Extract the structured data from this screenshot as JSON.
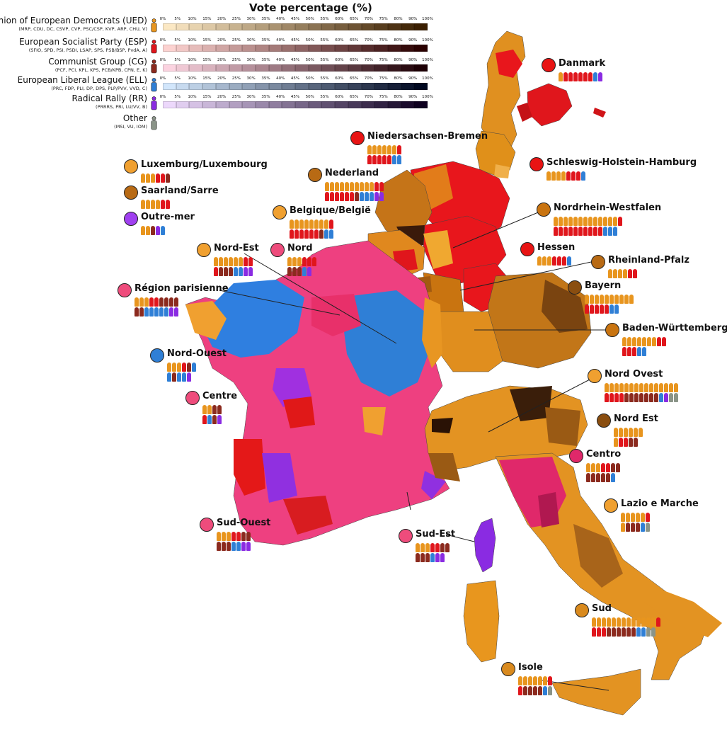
{
  "legend": {
    "title": "Vote percentage (%)",
    "ticks": [
      "0%",
      "5%",
      "10%",
      "15%",
      "20%",
      "25%",
      "30%",
      "35%",
      "40%",
      "45%",
      "50%",
      "55%",
      "60%",
      "65%",
      "70%",
      "75%",
      "80%",
      "90%",
      "100%"
    ],
    "parties": [
      {
        "name": "Union of European Democrats (UED)",
        "members": "(MRP, CDU, DC, CSVP, CVP, PSC/CSP, KVP, ARP, CHU, V)",
        "color": "#e8951e",
        "ramp_start": "#fbe8c4",
        "ramp_end": "#3a1e00"
      },
      {
        "name": "European Socialist Party (ESP)",
        "members": "(SFIO, SPD, PSI, PSDI, LSAP, SPS, PSB/BSP, PvdA, A)",
        "color": "#e0161c",
        "ramp_start": "#fcd2d0",
        "ramp_end": "#2a0000"
      },
      {
        "name": "Communist Group (CG)",
        "members": "(PCF, PCI, KPL, KPS, PCB/KPB, CPN, E, K)",
        "color": "#8b2a1e",
        "ramp_start": "#fbd3e0",
        "ramp_end": "#1e0005"
      },
      {
        "name": "European Liberal League (ELL)",
        "members": "(PRC, FDP, PLI, DP, DPS, PLP/PVV, VVD, C)",
        "color": "#2f7fd6",
        "ramp_start": "#d2e6fb",
        "ramp_end": "#000820"
      },
      {
        "name": "Radical Rally (RR)",
        "members": "(PRRRS, PRI, LU/VV, B)",
        "color": "#8a2be2",
        "ramp_start": "#ecd8fb",
        "ramp_end": "#0e0020"
      },
      {
        "name": "Other",
        "members": "(MSI, VU, IOM)",
        "color": "#8a9488"
      }
    ]
  },
  "regions": [
    {
      "name": "Danmark",
      "dot": "#e81414",
      "seats": [
        "ued",
        "esp",
        "esp",
        "esp",
        "esp",
        "esp",
        "esp",
        "ell",
        "rr"
      ]
    },
    {
      "name": "Niedersachsen-Bremen",
      "dot": "#e81414",
      "seats": [
        "ued",
        "ued",
        "ued",
        "ued",
        "ued",
        "ued",
        "esp",
        "esp",
        "esp",
        "esp",
        "esp",
        "esp",
        "ell",
        "ell"
      ]
    },
    {
      "name": "Schleswig-Holstein-Hamburg",
      "dot": "#e81414",
      "seats": [
        "ued",
        "ued",
        "ued",
        "ued",
        "esp",
        "esp",
        "esp",
        "ell"
      ]
    },
    {
      "name": "Luxemburg/Luxembourg",
      "dot": "#f0a030",
      "seats": [
        "ued",
        "ued",
        "ued",
        "esp",
        "esp",
        "cg"
      ]
    },
    {
      "name": "Nederland",
      "dot": "#b86a14",
      "seats": [
        "ued",
        "ued",
        "ued",
        "ued",
        "ued",
        "ued",
        "ued",
        "ued",
        "ued",
        "ued",
        "esp",
        "esp",
        "esp",
        "esp",
        "esp",
        "esp",
        "esp",
        "esp",
        "cg",
        "ell",
        "ell",
        "ell",
        "rr",
        "rr"
      ]
    },
    {
      "name": "Saarland/Sarre",
      "dot": "#b86a14",
      "seats": [
        "ued",
        "ued",
        "ued",
        "ued",
        "esp",
        "esp"
      ]
    },
    {
      "name": "Nordrhein-Westfalen",
      "dot": "#c97410",
      "seats": [
        "ued",
        "ued",
        "ued",
        "ued",
        "ued",
        "ued",
        "ued",
        "ued",
        "ued",
        "ued",
        "ued",
        "ued",
        "ued",
        "esp",
        "esp",
        "esp",
        "esp",
        "esp",
        "esp",
        "esp",
        "esp",
        "esp",
        "esp",
        "esp",
        "ell",
        "ell",
        "ell"
      ]
    },
    {
      "name": "Belgique/België",
      "dot": "#f0a030",
      "seats": [
        "ued",
        "ued",
        "ued",
        "ued",
        "ued",
        "ued",
        "ued",
        "ued",
        "esp",
        "esp",
        "esp",
        "esp",
        "esp",
        "esp",
        "esp",
        "cg",
        "ell",
        "ell"
      ]
    },
    {
      "name": "Outre-mer",
      "dot": "#a040f0",
      "seats": [
        "ued",
        "ued",
        "cg",
        "rr",
        "ell"
      ]
    },
    {
      "name": "Nord-Est",
      "dot": "#f0a030",
      "seats": [
        "ued",
        "ued",
        "ued",
        "ued",
        "ued",
        "ued",
        "esp",
        "esp",
        "esp",
        "cg",
        "cg",
        "cg",
        "ell",
        "ell",
        "rr",
        "rr"
      ]
    },
    {
      "name": "Nord",
      "dot": "#ee4c7c",
      "seats": [
        "ued",
        "ued",
        "ued",
        "esp",
        "esp",
        "esp",
        "cg",
        "cg",
        "cg",
        "ell",
        "rr"
      ]
    },
    {
      "name": "Hessen",
      "dot": "#e81414",
      "seats": [
        "ued",
        "ued",
        "ued",
        "esp",
        "esp",
        "esp",
        "ell"
      ]
    },
    {
      "name": "Rheinland-Pfalz",
      "dot": "#b86a14",
      "seats": [
        "ued",
        "ued",
        "ued",
        "ued",
        "esp",
        "esp"
      ]
    },
    {
      "name": "Région parisienne",
      "dot": "#ee4c7c",
      "seats": [
        "ued",
        "ued",
        "ued",
        "esp",
        "esp",
        "cg",
        "cg",
        "cg",
        "cg",
        "cg",
        "cg",
        "ell",
        "ell",
        "ell",
        "ell",
        "ell",
        "rr",
        "rr"
      ]
    },
    {
      "name": "Bayern",
      "dot": "#8a4e10",
      "seats": [
        "ued",
        "ued",
        "ued",
        "ued",
        "ued",
        "ued",
        "ued",
        "ued",
        "ued",
        "ued",
        "esp",
        "esp",
        "esp",
        "esp",
        "esp",
        "ell",
        "ell"
      ]
    },
    {
      "name": "Baden-Württemberg",
      "dot": "#c97410",
      "seats": [
        "ued",
        "ued",
        "ued",
        "ued",
        "ued",
        "ued",
        "ued",
        "esp",
        "esp",
        "esp",
        "esp",
        "esp",
        "ell",
        "ell"
      ]
    },
    {
      "name": "Nord-Ouest",
      "dot": "#2f7fd6",
      "seats": [
        "ued",
        "ued",
        "ued",
        "esp",
        "cg",
        "ell",
        "ell",
        "cg",
        "ell",
        "ell",
        "rr"
      ]
    },
    {
      "name": "Centre",
      "dot": "#ee4c7c",
      "seats": [
        "ued",
        "ued",
        "cg",
        "cg",
        "esp",
        "ell",
        "cg",
        "rr"
      ]
    },
    {
      "name": "Nord Ovest",
      "dot": "#f0a030",
      "seats": [
        "ued",
        "ued",
        "ued",
        "ued",
        "ued",
        "ued",
        "ued",
        "ued",
        "ued",
        "ued",
        "ued",
        "ued",
        "ued",
        "ued",
        "ued",
        "esp",
        "esp",
        "esp",
        "esp",
        "cg",
        "cg",
        "cg",
        "cg",
        "cg",
        "cg",
        "cg",
        "ell",
        "rr",
        "other",
        "other"
      ]
    },
    {
      "name": "Nord Est",
      "dot": "#8a4e10",
      "seats": [
        "ued",
        "ued",
        "ued",
        "ued",
        "ued",
        "ued",
        "ued",
        "esp",
        "esp",
        "cg",
        "cg"
      ]
    },
    {
      "name": "Centro",
      "dot": "#e0286a",
      "seats": [
        "ued",
        "ued",
        "ued",
        "esp",
        "esp",
        "cg",
        "cg",
        "cg",
        "cg",
        "cg",
        "cg",
        "cg",
        "ell"
      ]
    },
    {
      "name": "Lazio e Marche",
      "dot": "#f0a030",
      "seats": [
        "ued",
        "ued",
        "ued",
        "ued",
        "ued",
        "esp",
        "ued",
        "cg",
        "cg",
        "cg",
        "ell",
        "other"
      ]
    },
    {
      "name": "Sud-Ouest",
      "dot": "#ee4c7c",
      "seats": [
        "ued",
        "ued",
        "ued",
        "esp",
        "esp",
        "cg",
        "cg",
        "cg",
        "cg",
        "cg",
        "ell",
        "ell",
        "rr",
        "rr"
      ]
    },
    {
      "name": "Sud-Est",
      "dot": "#ee4c7c",
      "seats": [
        "ued",
        "ued",
        "ued",
        "esp",
        "esp",
        "cg",
        "cg",
        "cg",
        "cg",
        "cg",
        "ell",
        "rr",
        "rr"
      ]
    },
    {
      "name": "Sud",
      "dot": "#d98a1e",
      "seats": [
        "ued",
        "ued",
        "ued",
        "ued",
        "ued",
        "ued",
        "ued",
        "ued",
        "ued",
        "ued",
        "ued",
        "ued",
        "ued",
        "esp",
        "esp",
        "esp",
        "esp",
        "cg",
        "cg",
        "cg",
        "cg",
        "cg",
        "cg",
        "ell",
        "ell",
        "other",
        "other"
      ]
    },
    {
      "name": "Isole",
      "dot": "#d98a1e",
      "seats": [
        "ued",
        "ued",
        "ued",
        "ued",
        "ued",
        "ued",
        "esp",
        "esp",
        "cg",
        "cg",
        "cg",
        "cg",
        "ell",
        "other"
      ]
    }
  ]
}
